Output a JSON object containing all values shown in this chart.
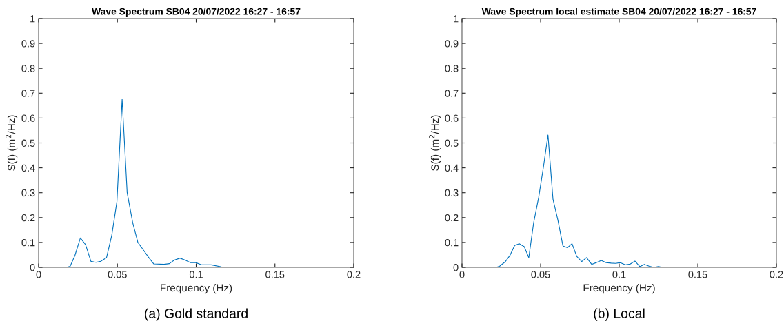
{
  "chart_data": [
    {
      "type": "line",
      "title": "Wave Spectrum SB04 20/07/2022 16:27 - 16:57",
      "xlabel": "Frequency (Hz)",
      "ylabel": "S(f) (m$^{2}$/Hz)",
      "annotations": [
        "(a) Gold standard"
      ],
      "x": [
        0,
        0.0176,
        0.02,
        0.023,
        0.0265,
        0.0298,
        0.0332,
        0.0364,
        0.0394,
        0.0431,
        0.0464,
        0.0497,
        0.053,
        0.0562,
        0.0597,
        0.063,
        0.066,
        0.0696,
        0.073,
        0.0796,
        0.083,
        0.0861,
        0.0897,
        0.093,
        0.0964,
        0.0997,
        0.103,
        0.1095,
        0.116,
        0.12,
        0.2
      ],
      "series": [
        {
          "color": "#0072bd",
          "values": [
            0,
            0,
            0.004,
            0.047,
            0.118,
            0.091,
            0.024,
            0.02,
            0.024,
            0.039,
            0.128,
            0.264,
            0.675,
            0.3,
            0.18,
            0.1,
            0.074,
            0.042,
            0.014,
            0.012,
            0.015,
            0.029,
            0.037,
            0.029,
            0.019,
            0.019,
            0.011,
            0.01,
            0.002,
            0,
            0
          ]
        }
      ],
      "xlim": [
        0,
        0.2
      ],
      "xticks": [
        0,
        0.05,
        0.1,
        0.15,
        0.2
      ],
      "ylim": [
        0,
        1
      ],
      "yticks": [
        0,
        0.1,
        0.2,
        0.3,
        0.4,
        0.5,
        0.6,
        0.7,
        0.8,
        0.9,
        1
      ],
      "grid": false,
      "marker": "none",
      "line_style": "solid"
    },
    {
      "type": "line",
      "title": "Wave Spectrum local estimate SB04 20/07/2022 16:27 - 16:57",
      "xlabel": "Frequency (Hz)",
      "ylabel": "S(f) (m$^{2}$/Hz)",
      "annotations": [
        "(b) Local"
      ],
      "x": [
        0,
        0.0218,
        0.024,
        0.0276,
        0.0306,
        0.0335,
        0.0364,
        0.0396,
        0.0425,
        0.0456,
        0.0488,
        0.0518,
        0.0547,
        0.0579,
        0.061,
        0.0642,
        0.0671,
        0.07,
        0.073,
        0.0762,
        0.0792,
        0.0825,
        0.0854,
        0.0886,
        0.0917,
        0.0949,
        0.0978,
        0.1007,
        0.1041,
        0.107,
        0.11,
        0.1131,
        0.116,
        0.119,
        0.122,
        0.125,
        0.1275,
        0.2
      ],
      "series": [
        {
          "color": "#0072bd",
          "values": [
            0,
            0,
            0.005,
            0.023,
            0.049,
            0.088,
            0.095,
            0.083,
            0.039,
            0.18,
            0.282,
            0.403,
            0.532,
            0.273,
            0.19,
            0.086,
            0.079,
            0.095,
            0.044,
            0.023,
            0.039,
            0.012,
            0.019,
            0.028,
            0.019,
            0.017,
            0.016,
            0.019,
            0.01,
            0.013,
            0.025,
            0.003,
            0.012,
            0.005,
            0,
            0.003,
            0,
            0
          ]
        }
      ],
      "xlim": [
        0,
        0.2
      ],
      "xticks": [
        0,
        0.05,
        0.1,
        0.15,
        0.2
      ],
      "ylim": [
        0,
        1
      ],
      "yticks": [
        0,
        0.1,
        0.2,
        0.3,
        0.4,
        0.5,
        0.6,
        0.7,
        0.8,
        0.9,
        1
      ],
      "grid": false,
      "marker": "none",
      "line_style": "solid"
    }
  ]
}
